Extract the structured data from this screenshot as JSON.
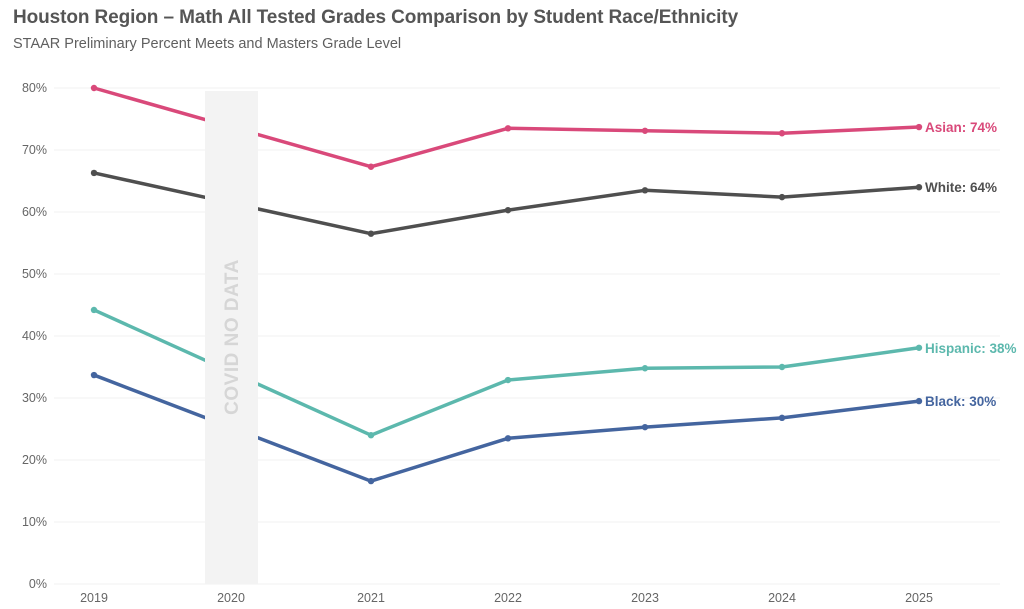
{
  "chart_data": {
    "type": "line",
    "title": "Houston Region – Math All Tested Grades Comparison by Student Race/Ethnicity",
    "subtitle": "STAAR Preliminary Percent Meets and Masters Grade Level",
    "xlabel": "",
    "ylabel": "",
    "categories": [
      "2019",
      "2020",
      "2021",
      "2022",
      "2023",
      "2024",
      "2025"
    ],
    "ylim": [
      0,
      80
    ],
    "yticks": [
      0,
      10,
      20,
      30,
      40,
      50,
      60,
      70,
      80
    ],
    "ytick_labels": [
      "0%",
      "10%",
      "20%",
      "30%",
      "40%",
      "50%",
      "60%",
      "70%",
      "80%"
    ],
    "grid": true,
    "legend": "end-of-line labels (right)",
    "annotation": {
      "category": "2020",
      "text": "COVID NO DATA",
      "color": "#f3f3f3",
      "text_color": "#d6d6d6"
    },
    "series": [
      {
        "name": "Asian",
        "end_label": "Asian: 74%",
        "color": "#d9497a",
        "values": [
          80.0,
          null,
          67.3,
          73.5,
          73.1,
          72.7,
          73.7
        ]
      },
      {
        "name": "White",
        "end_label": "White: 64%",
        "color": "#4f4f4f",
        "values": [
          66.3,
          null,
          56.5,
          60.3,
          63.5,
          62.4,
          64.0
        ]
      },
      {
        "name": "Hispanic",
        "end_label": "Hispanic: 38%",
        "color": "#5cb8ad",
        "values": [
          44.2,
          null,
          24.0,
          32.9,
          34.8,
          35.0,
          38.1
        ]
      },
      {
        "name": "Black",
        "end_label": "Black: 30%",
        "color": "#44659f",
        "values": [
          33.7,
          null,
          16.6,
          23.5,
          25.3,
          26.8,
          29.5
        ]
      }
    ]
  }
}
